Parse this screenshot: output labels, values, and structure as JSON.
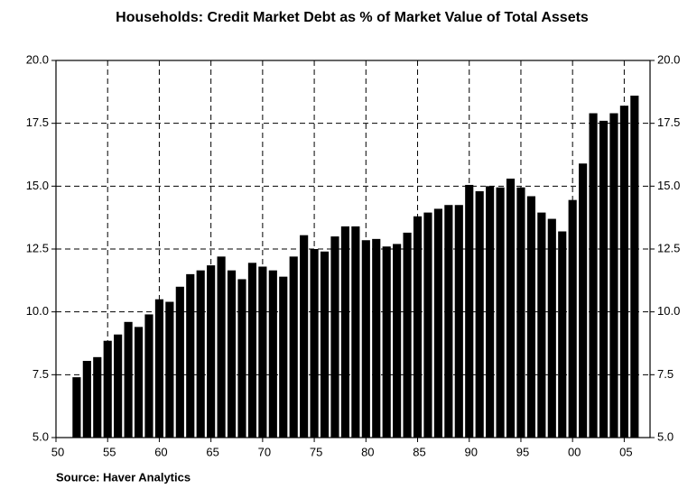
{
  "chart_data": {
    "type": "bar",
    "title": "Households: Credit Market Debt as % of Market Value of Total Assets",
    "source": "Source: Haver Analytics",
    "x": [
      1952,
      1953,
      1954,
      1955,
      1956,
      1957,
      1958,
      1959,
      1960,
      1961,
      1962,
      1963,
      1964,
      1965,
      1966,
      1967,
      1968,
      1969,
      1970,
      1971,
      1972,
      1973,
      1974,
      1975,
      1976,
      1977,
      1978,
      1979,
      1980,
      1981,
      1982,
      1983,
      1984,
      1985,
      1986,
      1987,
      1988,
      1989,
      1990,
      1991,
      1992,
      1993,
      1994,
      1995,
      1996,
      1997,
      1998,
      1999,
      2000,
      2001,
      2002,
      2003,
      2004,
      2005,
      2006
    ],
    "values": [
      7.4,
      8.05,
      8.2,
      8.85,
      9.1,
      9.6,
      9.4,
      9.9,
      10.5,
      10.4,
      11.0,
      11.5,
      11.65,
      11.85,
      12.2,
      11.65,
      11.3,
      11.95,
      11.8,
      11.65,
      11.4,
      12.2,
      13.05,
      12.5,
      12.4,
      13.0,
      13.4,
      13.4,
      12.85,
      12.9,
      12.6,
      12.7,
      13.15,
      13.8,
      13.95,
      14.1,
      14.25,
      14.25,
      15.05,
      14.8,
      15.0,
      14.95,
      15.3,
      14.95,
      14.6,
      13.95,
      13.7,
      13.2,
      14.45,
      15.9,
      17.9,
      17.6,
      17.9,
      18.2,
      18.6
    ],
    "color": "#000000",
    "xlim": [
      1950,
      2007.5
    ],
    "xticks": [
      {
        "value": 1950,
        "label": "50"
      },
      {
        "value": 1955,
        "label": "55"
      },
      {
        "value": 1960,
        "label": "60"
      },
      {
        "value": 1965,
        "label": "65"
      },
      {
        "value": 1970,
        "label": "70"
      },
      {
        "value": 1975,
        "label": "75"
      },
      {
        "value": 1980,
        "label": "80"
      },
      {
        "value": 1985,
        "label": "85"
      },
      {
        "value": 1990,
        "label": "90"
      },
      {
        "value": 1995,
        "label": "95"
      },
      {
        "value": 2000,
        "label": "00"
      },
      {
        "value": 2005,
        "label": "05"
      }
    ],
    "ylim": [
      5,
      20
    ],
    "yticks": [
      {
        "value": 5,
        "label": "5.0"
      },
      {
        "value": 7.5,
        "label": "7.5"
      },
      {
        "value": 10,
        "label": "10.0"
      },
      {
        "value": 12.5,
        "label": "12.5"
      },
      {
        "value": 15,
        "label": "15.0"
      },
      {
        "value": 17.5,
        "label": "17.5"
      },
      {
        "value": 20,
        "label": "20.0"
      }
    ],
    "y2ticks": [
      {
        "value": 5,
        "label": "5.0"
      },
      {
        "value": 7.5,
        "label": "7.5"
      },
      {
        "value": 10,
        "label": "10.0"
      },
      {
        "value": 12.5,
        "label": "12.5"
      },
      {
        "value": 15,
        "label": "15.0"
      },
      {
        "value": 17.5,
        "label": "17.5"
      },
      {
        "value": 20,
        "label": "20.0"
      }
    ],
    "grid": true
  }
}
